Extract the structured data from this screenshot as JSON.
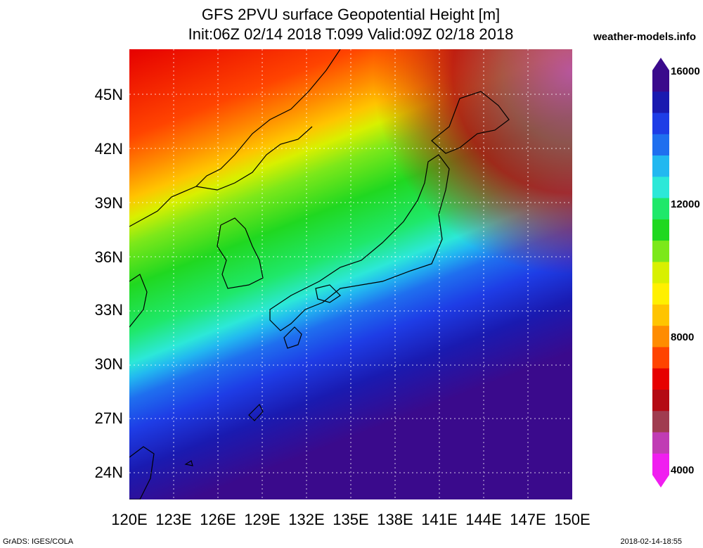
{
  "header": {
    "title_line1": "GFS 2PVU surface Geopotential Height [m]",
    "title_line2": "Init:06Z 02/14 2018 T:099 Valid:09Z 02/18 2018",
    "brand": "weather-models.info"
  },
  "map": {
    "lat_labels": [
      "45N",
      "42N",
      "39N",
      "36N",
      "33N",
      "30N",
      "27N",
      "24N"
    ],
    "lon_labels": [
      "120E",
      "123E",
      "126E",
      "129E",
      "132E",
      "135E",
      "138E",
      "141E",
      "144E",
      "147E",
      "150E"
    ]
  },
  "colorbar": {
    "labels": [
      "16000",
      "12000",
      "8000",
      "4000"
    ],
    "colors": [
      "#3a0a8c",
      "#1a1ab0",
      "#1e3de6",
      "#1f6fef",
      "#22b8f0",
      "#2ce8d8",
      "#1fe86a",
      "#20d820",
      "#7ce81a",
      "#d8f000",
      "#fff000",
      "#ffc400",
      "#ff8c00",
      "#ff4400",
      "#e60000",
      "#b40a14",
      "#a03c50",
      "#c03cb4",
      "#f01ef0"
    ]
  },
  "footer": {
    "left": "GrADS: IGES/COLA",
    "right": "2018-02-14-18:55"
  }
}
